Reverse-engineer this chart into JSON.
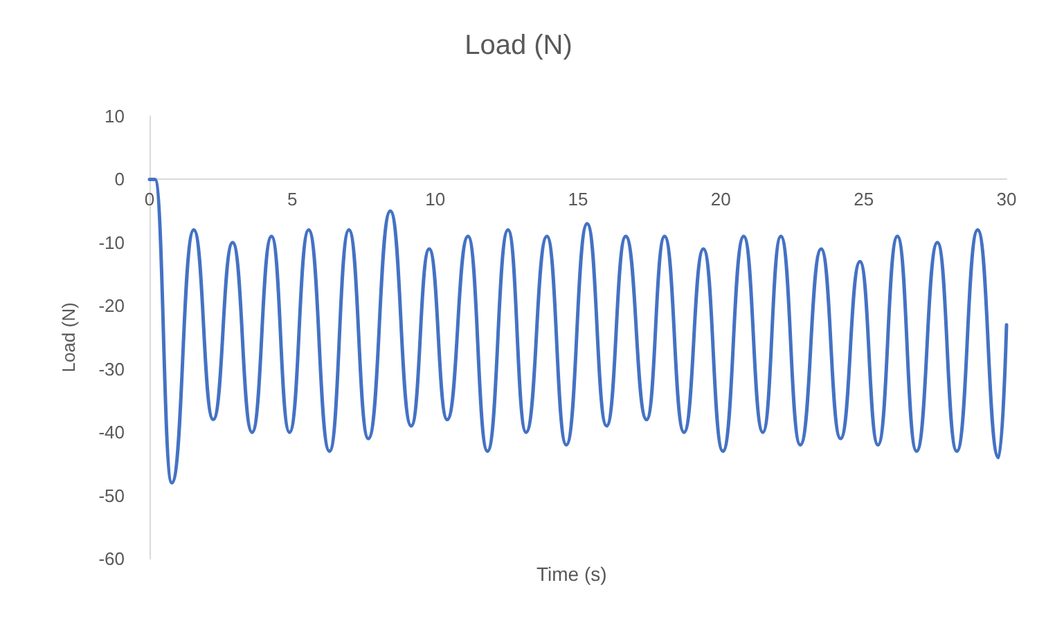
{
  "chart_data": {
    "type": "line",
    "title": "Load (N)",
    "xlabel": "Time (s)",
    "ylabel": "Load (N)",
    "xlim": [
      0,
      30
    ],
    "xticks": [
      0,
      5,
      10,
      15,
      20,
      25,
      30
    ],
    "ylim": [
      -60,
      10
    ],
    "yticks": [
      -60,
      -50,
      -40,
      -30,
      -20,
      -10,
      0,
      10
    ],
    "grid": false,
    "marker": "none",
    "line_style": "solid",
    "series": [
      {
        "color": "#4472c4",
        "x": [
          0,
          0.19,
          0.78,
          1.55,
          2.23,
          2.91,
          3.59,
          4.27,
          4.9,
          5.57,
          6.3,
          6.98,
          7.66,
          8.43,
          9.16,
          9.79,
          10.42,
          11.15,
          11.83,
          12.55,
          13.18,
          13.91,
          14.59,
          15.32,
          16.0,
          16.67,
          17.4,
          18.03,
          18.71,
          19.39,
          20.07,
          20.8,
          21.47,
          22.1,
          22.78,
          23.51,
          24.19,
          24.87,
          25.5,
          26.18,
          26.85,
          27.58,
          28.26,
          28.99,
          29.72,
          30.0
        ],
        "values": [
          0,
          0,
          -48,
          -8,
          -38,
          -10,
          -40,
          -9,
          -40,
          -8,
          -43,
          -8,
          -41,
          -5,
          -39,
          -11,
          -38,
          -9,
          -43,
          -8,
          -40,
          -9,
          -42,
          -7,
          -39,
          -9,
          -38,
          -9,
          -40,
          -11,
          -43,
          -9,
          -40,
          -9,
          -42,
          -11,
          -41,
          -13,
          -42,
          -9,
          -43,
          -10,
          -43,
          -8,
          -44,
          -23
        ]
      }
    ]
  }
}
